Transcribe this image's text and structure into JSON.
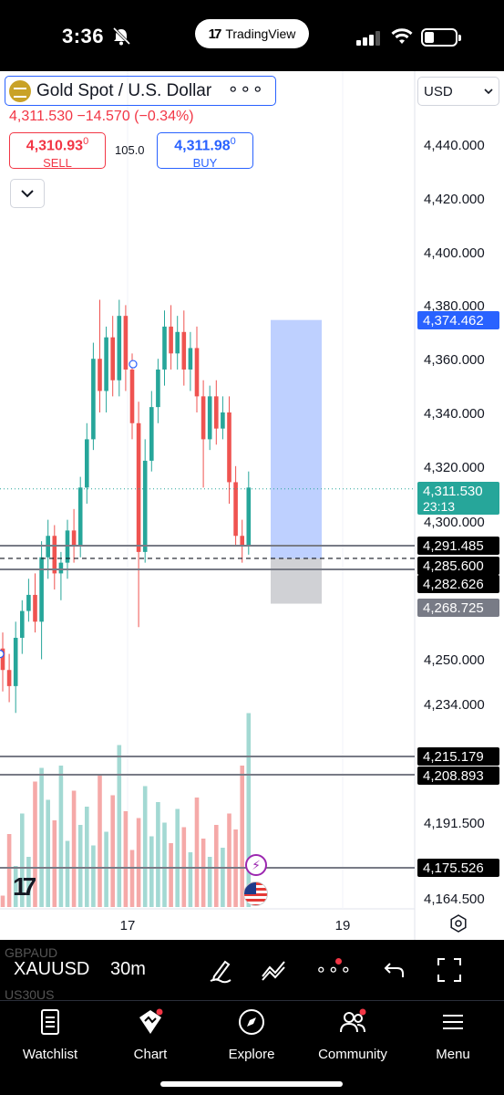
{
  "status_bar": {
    "time": "3:36",
    "app_pill": "TradingView"
  },
  "header": {
    "symbol_title": "Gold Spot / U.S. Dollar",
    "change_line": "4,311.530 −14.570 (−0.34%)",
    "sell": {
      "price": "4,310.93",
      "price_sup": "0",
      "label": "SELL"
    },
    "spread": "105.0",
    "buy": {
      "price": "4,311.98",
      "price_sup": "0",
      "label": "BUY"
    },
    "currency": "USD"
  },
  "price_axis": {
    "ticks": [
      "4,440.000",
      "4,420.000",
      "4,400.000",
      "4,380.000",
      "4,360.000",
      "4,340.000",
      "4,320.000",
      "4,300.000",
      "4,250.000",
      "4,234.000",
      "4,191.500",
      "4,164.500"
    ],
    "labels": [
      {
        "text": "4,374.462",
        "color": "#2962ff",
        "fg": "#ffffff"
      },
      {
        "text": "4,311.530",
        "sub": "23:13",
        "color": "#26a69a",
        "fg": "#ffffff"
      },
      {
        "text": "4,291.485",
        "color": "#000000",
        "fg": "#ffffff"
      },
      {
        "text": "4,285.600",
        "color": "#000000",
        "fg": "#ffffff"
      },
      {
        "text": "4,282.626",
        "color": "#000000",
        "fg": "#ffffff"
      },
      {
        "text": "4,268.725",
        "color": "#787b86",
        "fg": "#ffffff"
      },
      {
        "text": "4,215.179",
        "color": "#000000",
        "fg": "#ffffff"
      },
      {
        "text": "4,208.893",
        "color": "#000000",
        "fg": "#ffffff"
      },
      {
        "text": "4,175.526",
        "color": "#000000",
        "fg": "#ffffff"
      }
    ]
  },
  "time_axis": {
    "labels": [
      "17",
      "19"
    ]
  },
  "chart_data": {
    "type": "candlestick",
    "symbol": "XAUUSD",
    "interval": "30m",
    "last_price": 4311.53,
    "countdown": "23:13",
    "position_tool": {
      "target": 4374.462,
      "entry": 4285.6,
      "stop": 4268.725
    },
    "horizontal_levels": [
      4291.485,
      4282.626,
      4215.179,
      4208.893,
      4175.526
    ],
    "candles": [
      [
        4252,
        4258,
        4236,
        4244
      ],
      [
        4244,
        4250,
        4232,
        4238
      ],
      [
        4238,
        4262,
        4228,
        4256
      ],
      [
        4256,
        4270,
        4250,
        4266
      ],
      [
        4266,
        4278,
        4262,
        4272
      ],
      [
        4272,
        4280,
        4258,
        4262
      ],
      [
        4262,
        4292,
        4248,
        4286
      ],
      [
        4286,
        4300,
        4278,
        4294
      ],
      [
        4294,
        4298,
        4274,
        4280
      ],
      [
        4280,
        4288,
        4270,
        4284
      ],
      [
        4284,
        4300,
        4278,
        4296
      ],
      [
        4296,
        4304,
        4284,
        4290
      ],
      [
        4290,
        4316,
        4286,
        4312
      ],
      [
        4312,
        4336,
        4306,
        4330
      ],
      [
        4330,
        4366,
        4326,
        4360
      ],
      [
        4360,
        4382,
        4340,
        4348
      ],
      [
        4348,
        4372,
        4340,
        4368
      ],
      [
        4368,
        4376,
        4346,
        4352
      ],
      [
        4352,
        4382,
        4346,
        4376
      ],
      [
        4376,
        4380,
        4348,
        4356
      ],
      [
        4356,
        4362,
        4330,
        4336
      ],
      [
        4336,
        4344,
        4260,
        4288
      ],
      [
        4288,
        4330,
        4284,
        4322
      ],
      [
        4322,
        4348,
        4318,
        4342
      ],
      [
        4342,
        4360,
        4336,
        4356
      ],
      [
        4356,
        4378,
        4350,
        4372
      ],
      [
        4372,
        4380,
        4356,
        4362
      ],
      [
        4362,
        4376,
        4356,
        4370
      ],
      [
        4370,
        4378,
        4350,
        4356
      ],
      [
        4356,
        4370,
        4348,
        4364
      ],
      [
        4364,
        4372,
        4340,
        4346
      ],
      [
        4346,
        4352,
        4312,
        4330
      ],
      [
        4330,
        4350,
        4326,
        4346
      ],
      [
        4346,
        4352,
        4328,
        4334
      ],
      [
        4334,
        4346,
        4330,
        4340
      ],
      [
        4340,
        4346,
        4306,
        4314
      ],
      [
        4314,
        4320,
        4290,
        4294
      ],
      [
        4294,
        4300,
        4284,
        4290
      ],
      [
        4290,
        4318,
        4287,
        4312
      ]
    ],
    "volumes": [
      0.05,
      0.32,
      0.18,
      0.41,
      0.22,
      0.55,
      0.61,
      0.47,
      0.38,
      0.62,
      0.29,
      0.51,
      0.36,
      0.44,
      0.27,
      0.58,
      0.33,
      0.49,
      0.71,
      0.42,
      0.25,
      0.39,
      0.53,
      0.31,
      0.46,
      0.37,
      0.28,
      0.43,
      0.35,
      0.24,
      0.48,
      0.3,
      0.22,
      0.36,
      0.26,
      0.41,
      0.34,
      0.62,
      0.85
    ],
    "xlabels": [
      "17",
      "19"
    ]
  },
  "toolbar": {
    "symbol": "XAUUSD",
    "interval": "30m",
    "ghost_above": "GBPAUD",
    "ghost_below": "US30US"
  },
  "tabs": [
    {
      "label": "Watchlist",
      "icon": "watchlist-icon"
    },
    {
      "label": "Chart",
      "icon": "chart-icon"
    },
    {
      "label": "Explore",
      "icon": "compass-icon"
    },
    {
      "label": "Community",
      "icon": "community-icon"
    },
    {
      "label": "Menu",
      "icon": "menu-icon"
    }
  ]
}
